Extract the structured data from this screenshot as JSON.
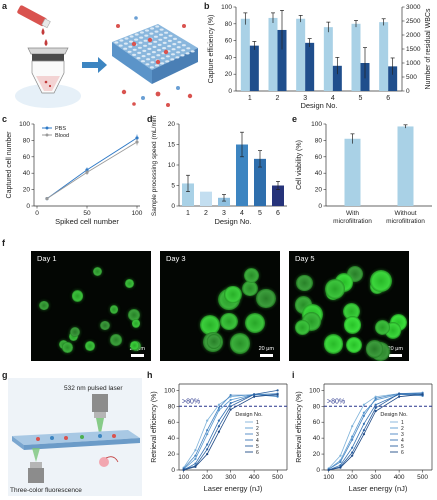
{
  "panels": {
    "a": "a",
    "b": "b",
    "c": "c",
    "d": "d",
    "e": "e",
    "f": "f",
    "g": "g",
    "h": "h",
    "i": "i"
  },
  "colors": {
    "light_blue": "#a9d1e6",
    "mid_blue": "#3d85c1",
    "dark_blue": "#1f4e8c",
    "navy": "#26337a",
    "dash": "#27348b"
  },
  "chart_b": {
    "type": "bar",
    "xlabel": "Design No.",
    "ylabel_left": "Capture efficiency (%)",
    "ylabel_right": "Number of residual WBCs",
    "categories": [
      "1",
      "2",
      "3",
      "4",
      "5",
      "6"
    ],
    "yticks_left": [
      "0",
      "20",
      "40",
      "60",
      "80",
      "100"
    ],
    "yticks_right": [
      "0",
      "500",
      "1000",
      "1500",
      "2000",
      "2500",
      "3000"
    ],
    "ylim_left": [
      0,
      100
    ],
    "ylim_right": [
      0,
      3000
    ],
    "series": [
      {
        "axis": "left",
        "values": [
          86,
          87,
          86,
          76,
          80,
          82
        ],
        "errors": [
          7,
          6,
          4,
          6,
          4,
          4
        ]
      },
      {
        "axis": "right",
        "values": [
          1620,
          2180,
          1720,
          900,
          1000,
          880
        ],
        "errors": [
          150,
          700,
          150,
          300,
          550,
          300
        ]
      }
    ]
  },
  "chart_c": {
    "type": "line",
    "xlabel": "Spiked cell number",
    "ylabel": "Captured cell number",
    "xticks": [
      "0",
      "50",
      "100"
    ],
    "yticks": [
      "0",
      "20",
      "40",
      "60",
      "80",
      "100"
    ],
    "xlim": [
      0,
      100
    ],
    "ylim": [
      0,
      100
    ],
    "legend_position": "top-left",
    "series": [
      {
        "name": "PBS",
        "x": [
          10,
          50,
          100
        ],
        "y": [
          9,
          44,
          83
        ],
        "errors": [
          1,
          3,
          4
        ]
      },
      {
        "name": "Blood",
        "x": [
          10,
          50,
          100
        ],
        "y": [
          9,
          41,
          78
        ],
        "errors": [
          1,
          3,
          4
        ]
      }
    ]
  },
  "chart_d": {
    "type": "bar",
    "xlabel": "Design No.",
    "ylabel": "Sample processing speed (mL/min)",
    "categories": [
      "1",
      "2",
      "3",
      "4",
      "5",
      "6"
    ],
    "yticks": [
      "0",
      "5",
      "10",
      "15",
      "20"
    ],
    "ylim": [
      0,
      20
    ],
    "values": [
      5.5,
      3.5,
      2,
      15,
      11.5,
      5
    ],
    "errors": [
      2,
      0,
      0.8,
      3,
      2,
      1
    ]
  },
  "chart_e": {
    "type": "bar",
    "ylabel": "Cell viability (%)",
    "categories": [
      "With microfiltration",
      "Without microfiltration"
    ],
    "yticks": [
      "0",
      "20",
      "40",
      "60",
      "80",
      "100"
    ],
    "ylim": [
      0,
      100
    ],
    "values": [
      82,
      97
    ],
    "errors": [
      6,
      2
    ]
  },
  "micrographs": [
    {
      "label": "Day 1",
      "scale": "20 μm"
    },
    {
      "label": "Day 3",
      "scale": "20 μm"
    },
    {
      "label": "Day 5",
      "scale": "20 μm"
    }
  ],
  "schematic_g": {
    "laser_label": "532 nm pulsed laser",
    "fluor_label": "Three-color fluorescence"
  },
  "chart_h": {
    "type": "line",
    "xlabel": "Laser energy (nJ)",
    "ylabel": "Retrieval efficiency (%)",
    "annotation": ">80%",
    "legend_title": "Design No.",
    "xticks": [
      "100",
      "200",
      "300",
      "400",
      "500"
    ],
    "yticks": [
      "0",
      "20",
      "40",
      "60",
      "80",
      "100"
    ],
    "xlim": [
      80,
      540
    ],
    "ylim": [
      0,
      108
    ],
    "threshold": 80,
    "series": [
      {
        "name": "1",
        "x": [
          100,
          150,
          200,
          250,
          300,
          400,
          500
        ],
        "y": [
          3,
          25,
          62,
          82,
          92,
          95,
          96
        ]
      },
      {
        "name": "2",
        "x": [
          100,
          150,
          200,
          250,
          300,
          400,
          500
        ],
        "y": [
          1,
          14,
          45,
          75,
          88,
          95,
          92
        ]
      },
      {
        "name": "3",
        "x": [
          100,
          150,
          200,
          250,
          300,
          400,
          500
        ],
        "y": [
          2,
          18,
          50,
          78,
          94,
          94,
          96
        ]
      },
      {
        "name": "4",
        "x": [
          100,
          150,
          200,
          250,
          300,
          400,
          500
        ],
        "y": [
          0,
          8,
          32,
          62,
          84,
          95,
          93
        ]
      },
      {
        "name": "5",
        "x": [
          100,
          150,
          200,
          250,
          300,
          400,
          500
        ],
        "y": [
          1,
          5,
          26,
          55,
          80,
          95,
          100
        ]
      },
      {
        "name": "6",
        "x": [
          100,
          150,
          200,
          250,
          300,
          400,
          500
        ],
        "y": [
          0,
          4,
          20,
          48,
          76,
          92,
          95
        ]
      }
    ]
  },
  "chart_i": {
    "type": "line",
    "xlabel": "Laser energy (nJ)",
    "ylabel": "Retrieval efficiency (%)",
    "annotation": ">80%",
    "legend_title": "Design No.",
    "xticks": [
      "100",
      "200",
      "300",
      "400",
      "500"
    ],
    "yticks": [
      "0",
      "20",
      "40",
      "60",
      "80",
      "100"
    ],
    "xlim": [
      80,
      540
    ],
    "ylim": [
      0,
      108
    ],
    "threshold": 80,
    "series": [
      {
        "name": "1",
        "x": [
          100,
          150,
          200,
          250,
          300,
          400,
          500
        ],
        "y": [
          2,
          18,
          55,
          82,
          92,
          96,
          95
        ]
      },
      {
        "name": "2",
        "x": [
          100,
          150,
          200,
          250,
          300,
          400,
          500
        ],
        "y": [
          1,
          12,
          42,
          72,
          88,
          95,
          93
        ]
      },
      {
        "name": "3",
        "x": [
          100,
          150,
          200,
          250,
          300,
          400,
          500
        ],
        "y": [
          1,
          10,
          38,
          68,
          90,
          96,
          97
        ]
      },
      {
        "name": "4",
        "x": [
          100,
          150,
          200,
          250,
          300,
          400,
          500
        ],
        "y": [
          0,
          6,
          28,
          58,
          82,
          95,
          96
        ]
      },
      {
        "name": "5",
        "x": [
          100,
          150,
          200,
          250,
          300,
          400,
          500
        ],
        "y": [
          0,
          4,
          22,
          50,
          78,
          96,
          94
        ]
      },
      {
        "name": "6",
        "x": [
          100,
          150,
          200,
          250,
          300,
          400,
          500
        ],
        "y": [
          0,
          3,
          18,
          45,
          74,
          92,
          95
        ]
      }
    ]
  }
}
